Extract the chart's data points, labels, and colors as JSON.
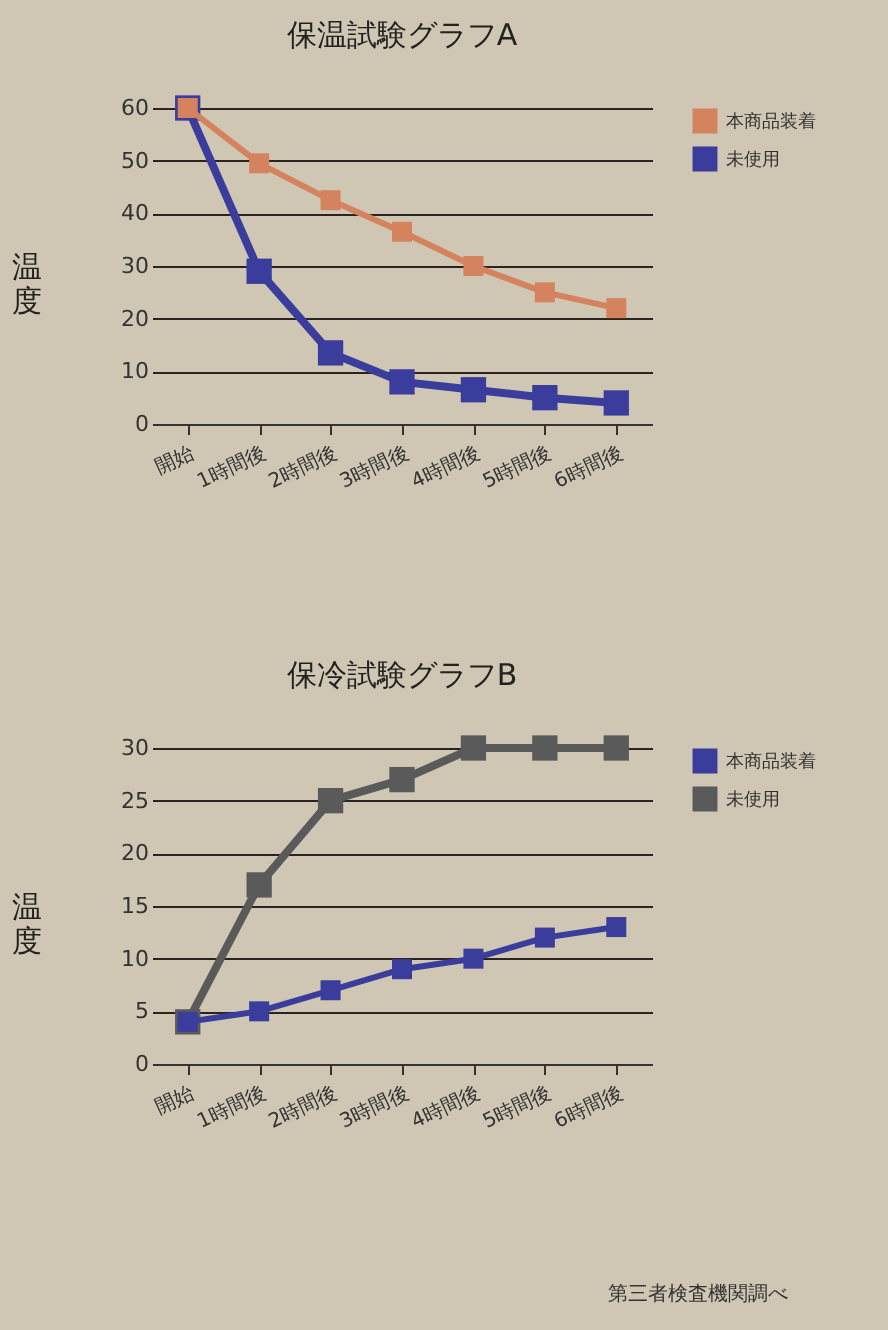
{
  "chart_data": [
    {
      "type": "line",
      "title": "保温試験グラフA",
      "ylabel": "温度",
      "categories": [
        "開始",
        "1時間後",
        "2時間後",
        "3時間後",
        "4時間後",
        "5時間後",
        "6時間後"
      ],
      "series": [
        {
          "name": "本商品装着",
          "color": "#d5835e",
          "values": [
            60,
            49.5,
            42.5,
            36.5,
            30,
            25,
            22
          ]
        },
        {
          "name": "未使用",
          "color": "#3a3d9c",
          "values": [
            60,
            29,
            13.5,
            8,
            6.5,
            5,
            4
          ]
        }
      ],
      "ylim": [
        0,
        60
      ],
      "yticks": [
        0,
        10,
        20,
        30,
        40,
        50,
        60
      ],
      "grid": "y",
      "legend": "top right",
      "marker": "square"
    },
    {
      "type": "line",
      "title": "保冷試験グラフB",
      "ylabel": "温度",
      "categories": [
        "開始",
        "1時間後",
        "2時間後",
        "3時間後",
        "4時間後",
        "5時間後",
        "6時間後"
      ],
      "series": [
        {
          "name": "本商品装着",
          "color": "#3a3d9c",
          "values": [
            4,
            5,
            7,
            9,
            10,
            12,
            13
          ]
        },
        {
          "name": "未使用",
          "color": "#5a5a5a",
          "values": [
            4,
            17,
            25,
            27,
            30,
            30,
            30
          ]
        }
      ],
      "ylim": [
        0,
        30
      ],
      "yticks": [
        0,
        5,
        10,
        15,
        20,
        25,
        30
      ],
      "grid": "y",
      "legend": "top right",
      "marker": "square",
      "annotations": [
        "第三者検査機関調べ"
      ]
    }
  ]
}
